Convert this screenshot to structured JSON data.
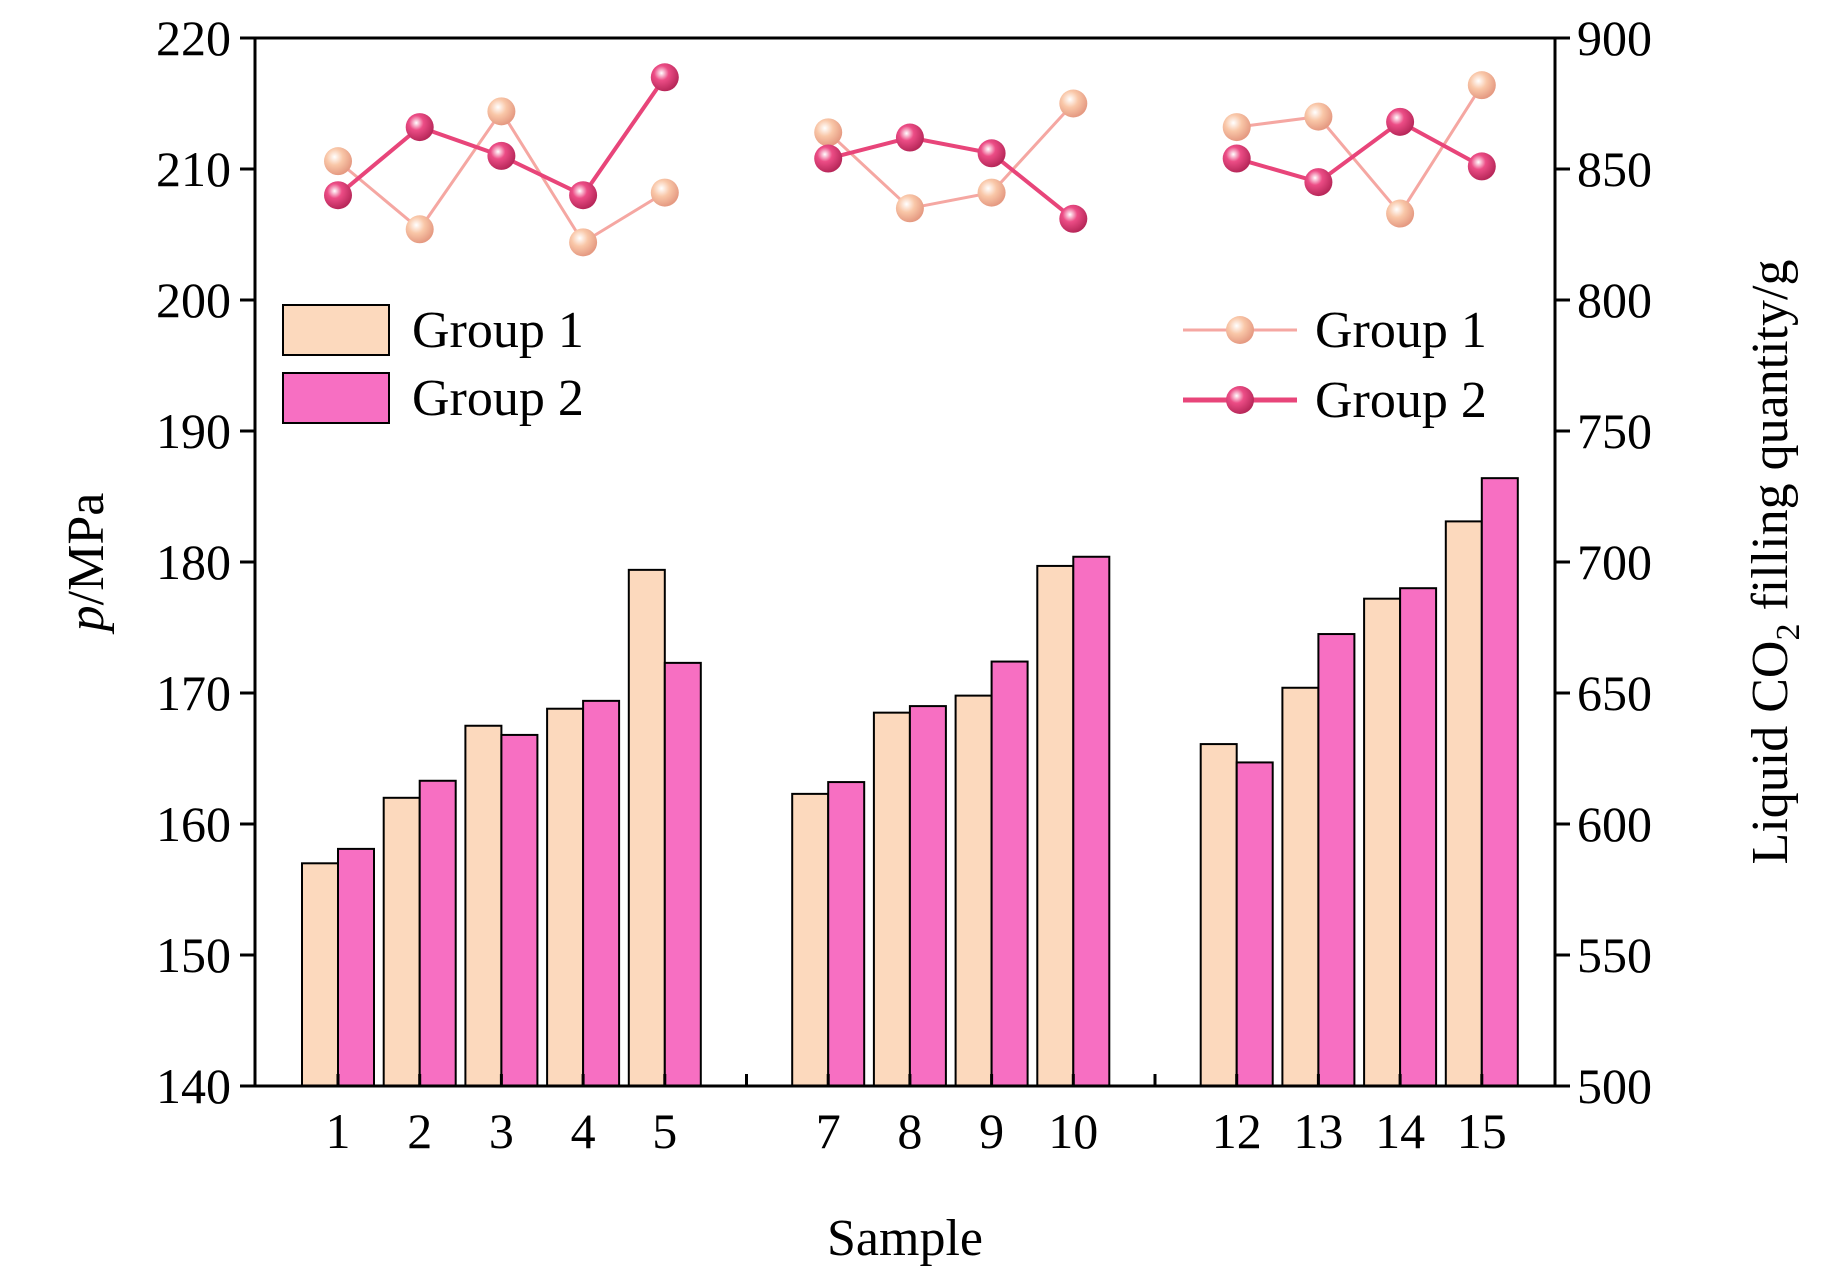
{
  "chart_data": {
    "type": "bar+line",
    "x_positions": [
      1,
      2,
      3,
      4,
      5,
      7,
      8,
      9,
      10,
      12,
      13,
      14,
      15
    ],
    "xtick_labels": [
      "1",
      "2",
      "3",
      "4",
      "5",
      "7",
      "8",
      "9",
      "10",
      "12",
      "13",
      "14",
      "15"
    ],
    "xlabel": "Sample",
    "ylabel_left": {
      "italic": "p",
      "rest": "/MPa"
    },
    "ylabel_right": {
      "pre": "Liquid CO",
      "sub": "2",
      "post": " filling quantity/g"
    },
    "ylim_left": [
      140,
      220
    ],
    "yticks_left": [
      "140",
      "150",
      "160",
      "170",
      "180",
      "190",
      "200",
      "210",
      "220"
    ],
    "ylim_right": [
      500,
      900
    ],
    "yticks_right": [
      "500",
      "550",
      "600",
      "650",
      "700",
      "750",
      "800",
      "850",
      "900"
    ],
    "bar_series": [
      {
        "name": "Group 1",
        "axis": "left",
        "color": "#fcd9bd",
        "values": [
          157.0,
          162.0,
          167.5,
          168.8,
          179.4,
          162.3,
          168.5,
          169.8,
          179.7,
          166.1,
          170.4,
          177.2,
          183.1
        ]
      },
      {
        "name": "Group 2",
        "axis": "left",
        "color": "#f76fc2",
        "values": [
          158.1,
          163.3,
          166.8,
          169.4,
          172.3,
          163.2,
          169.0,
          172.4,
          180.4,
          164.7,
          174.5,
          178.0,
          186.4
        ]
      }
    ],
    "line_series": [
      {
        "name": "Group 1",
        "axis": "right",
        "color": "#f5a7a2",
        "marker": "#f9c7a8",
        "segments": [
          {
            "x": [
              1,
              2,
              3,
              4,
              5
            ],
            "values": [
              853,
              827,
              872,
              822,
              841
            ]
          },
          {
            "x": [
              7,
              8,
              9,
              10
            ],
            "values": [
              864,
              835,
              841,
              875
            ]
          },
          {
            "x": [
              12,
              13,
              14,
              15
            ],
            "values": [
              866,
              870,
              833,
              882
            ]
          }
        ]
      },
      {
        "name": "Group 2",
        "axis": "right",
        "color": "#e8457a",
        "marker": "#ec4d86",
        "segments": [
          {
            "x": [
              1,
              2,
              3,
              4,
              5
            ],
            "values": [
              840,
              866,
              855,
              840,
              885
            ]
          },
          {
            "x": [
              7,
              8,
              9,
              10
            ],
            "values": [
              854,
              862,
              856,
              831
            ]
          },
          {
            "x": [
              12,
              13,
              14,
              15
            ],
            "values": [
              854,
              845,
              868,
              851
            ]
          }
        ]
      }
    ],
    "legend_bars": {
      "position": "top-left",
      "entries": [
        "Group 1",
        "Group 2"
      ]
    },
    "legend_lines": {
      "position": "top-right",
      "entries": [
        "Group 1",
        "Group 2"
      ]
    },
    "grid": false
  }
}
